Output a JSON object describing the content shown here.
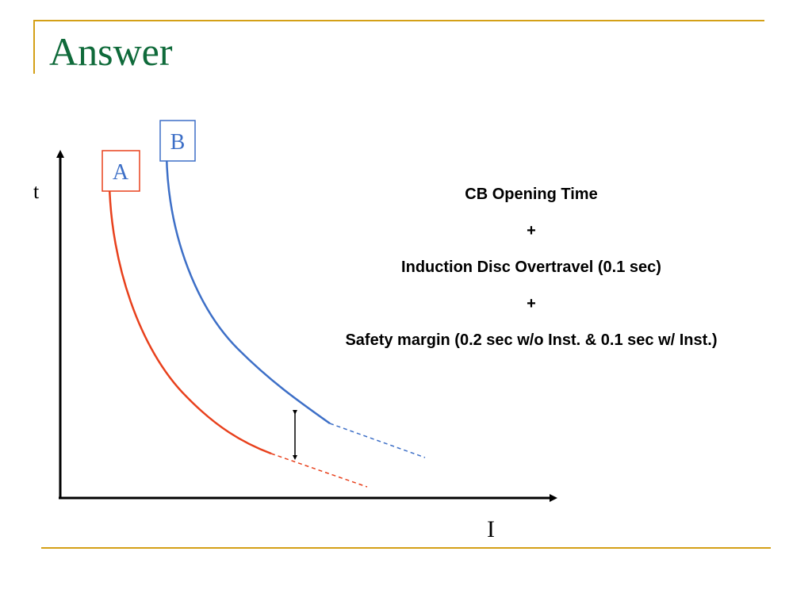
{
  "slide": {
    "title": "Answer"
  },
  "diagram": {
    "axis_labels": {
      "y": "t",
      "x": "I"
    },
    "curves": [
      {
        "label": "A",
        "color": "#e8401c"
      },
      {
        "label": "B",
        "color": "#3d6fc7"
      }
    ],
    "axis_color": "#000000"
  },
  "explanation": {
    "lines": [
      "CB Opening Time",
      "+",
      "Induction Disc Overtravel (0.1 sec)",
      "+",
      "Safety margin (0.2 sec w/o Inst. & 0.1 sec w/ Inst.)"
    ]
  }
}
